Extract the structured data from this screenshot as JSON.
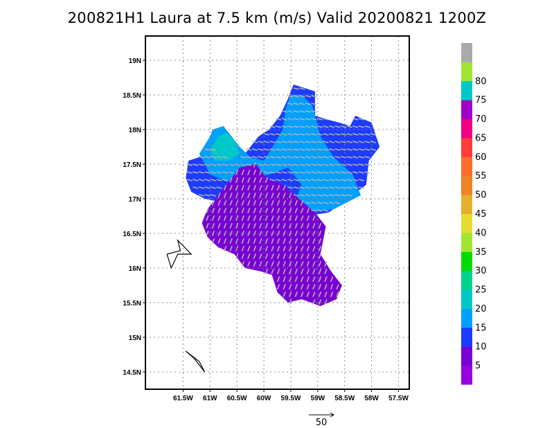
{
  "chart_data": {
    "type": "heatmap",
    "title": "200821H1 Laura at 7.5 km (m/s) Valid 20200821  1200Z",
    "xlim": [
      -62.2,
      -57.3
    ],
    "ylim": [
      14.25,
      19.35
    ],
    "x_ticks": [
      {
        "value": -61.5,
        "label": "61.5W"
      },
      {
        "value": -61.0,
        "label": "61W"
      },
      {
        "value": -60.5,
        "label": "60.5W"
      },
      {
        "value": -60.0,
        "label": "60W"
      },
      {
        "value": -59.5,
        "label": "59.5W"
      },
      {
        "value": -59.0,
        "label": "59W"
      },
      {
        "value": -58.5,
        "label": "58.5W"
      },
      {
        "value": -58.0,
        "label": "58W"
      },
      {
        "value": -57.5,
        "label": "57.5W"
      }
    ],
    "y_ticks": [
      {
        "value": 19.0,
        "label": "19N"
      },
      {
        "value": 18.5,
        "label": "18.5N"
      },
      {
        "value": 18.0,
        "label": "18N"
      },
      {
        "value": 17.5,
        "label": "17.5N"
      },
      {
        "value": 17.0,
        "label": "17N"
      },
      {
        "value": 16.5,
        "label": "16.5N"
      },
      {
        "value": 16.0,
        "label": "16N"
      },
      {
        "value": 15.5,
        "label": "15.5N"
      },
      {
        "value": 15.0,
        "label": "15N"
      },
      {
        "value": 14.5,
        "label": "14.5N"
      }
    ],
    "grid": true,
    "colorbar": {
      "bins": [
        {
          "lo": 0,
          "hi": 5,
          "color": "#9a00dc"
        },
        {
          "lo": 5,
          "hi": 10,
          "color": "#7800d2"
        },
        {
          "lo": 10,
          "hi": 15,
          "color": "#1e3cff"
        },
        {
          "lo": 15,
          "hi": 20,
          "color": "#00a0ff"
        },
        {
          "lo": 20,
          "hi": 25,
          "color": "#00c8c8"
        },
        {
          "lo": 25,
          "hi": 30,
          "color": "#00d28c"
        },
        {
          "lo": 30,
          "hi": 35,
          "color": "#00dc00"
        },
        {
          "lo": 35,
          "hi": 40,
          "color": "#a0e632"
        },
        {
          "lo": 40,
          "hi": 45,
          "color": "#e6dc32"
        },
        {
          "lo": 45,
          "hi": 50,
          "color": "#e6af2d"
        },
        {
          "lo": 50,
          "hi": 55,
          "color": "#f08228"
        },
        {
          "lo": 55,
          "hi": 60,
          "color": "#fa6e2a"
        },
        {
          "lo": 60,
          "hi": 65,
          "color": "#ff3c3c"
        },
        {
          "lo": 65,
          "hi": 70,
          "color": "#f00082"
        },
        {
          "lo": 70,
          "hi": 75,
          "color": "#a000c8"
        },
        {
          "lo": 75,
          "hi": 80,
          "color": "#00c8c8"
        },
        {
          "lo": 80,
          "hi": 85,
          "color": "#a0e632"
        },
        {
          "lo": 85,
          "hi": 90,
          "color": "#aaaaaa"
        }
      ],
      "labels": [
        "5",
        "10",
        "15",
        "20",
        "25",
        "30",
        "35",
        "40",
        "45",
        "50",
        "55",
        "60",
        "65",
        "70",
        "75",
        "80"
      ]
    },
    "wind_regions": [
      {
        "level": "10",
        "color": "#1e3cff",
        "polygon": [
          [
            -61.4,
            17.55
          ],
          [
            -61.2,
            17.6
          ],
          [
            -61.0,
            17.75
          ],
          [
            -60.8,
            17.7
          ],
          [
            -60.6,
            17.55
          ],
          [
            -60.4,
            17.6
          ],
          [
            -60.25,
            17.75
          ],
          [
            -60.1,
            17.9
          ],
          [
            -59.9,
            18.0
          ],
          [
            -59.7,
            18.2
          ],
          [
            -59.55,
            18.45
          ],
          [
            -59.45,
            18.65
          ],
          [
            -59.25,
            18.6
          ],
          [
            -59.05,
            18.55
          ],
          [
            -59.05,
            18.2
          ],
          [
            -58.85,
            18.15
          ],
          [
            -58.6,
            18.1
          ],
          [
            -58.4,
            18.05
          ],
          [
            -58.3,
            18.2
          ],
          [
            -58.0,
            18.1
          ],
          [
            -57.85,
            17.75
          ],
          [
            -58.05,
            17.55
          ],
          [
            -58.1,
            17.2
          ],
          [
            -58.45,
            17.0
          ],
          [
            -58.8,
            16.8
          ],
          [
            -59.25,
            16.75
          ],
          [
            -59.7,
            16.85
          ],
          [
            -60.3,
            16.9
          ],
          [
            -60.8,
            16.95
          ],
          [
            -61.1,
            17.0
          ],
          [
            -61.35,
            17.1
          ],
          [
            -61.45,
            17.3
          ]
        ]
      },
      {
        "level": "15",
        "color": "#00a0ff",
        "polygon": [
          [
            -61.2,
            17.65
          ],
          [
            -61.0,
            17.9
          ],
          [
            -60.95,
            18.0
          ],
          [
            -60.75,
            18.05
          ],
          [
            -60.6,
            17.9
          ],
          [
            -60.45,
            17.75
          ],
          [
            -60.25,
            17.6
          ],
          [
            -60.0,
            17.55
          ],
          [
            -59.8,
            17.8
          ],
          [
            -59.65,
            18.0
          ],
          [
            -59.6,
            18.3
          ],
          [
            -59.5,
            18.5
          ],
          [
            -59.3,
            18.5
          ],
          [
            -59.1,
            18.35
          ],
          [
            -58.95,
            17.9
          ],
          [
            -58.7,
            17.6
          ],
          [
            -58.35,
            17.35
          ],
          [
            -58.2,
            17.05
          ],
          [
            -58.7,
            16.85
          ],
          [
            -59.2,
            16.8
          ],
          [
            -59.45,
            16.9
          ],
          [
            -59.3,
            17.2
          ],
          [
            -59.55,
            17.45
          ],
          [
            -59.9,
            17.35
          ],
          [
            -60.3,
            17.3
          ],
          [
            -60.7,
            17.25
          ],
          [
            -61.0,
            17.35
          ]
        ]
      },
      {
        "level": "20",
        "color": "#00c8c8",
        "polygon": [
          [
            -61.0,
            17.7
          ],
          [
            -60.85,
            17.9
          ],
          [
            -60.7,
            17.95
          ],
          [
            -60.55,
            17.85
          ],
          [
            -60.45,
            17.65
          ],
          [
            -60.65,
            17.55
          ],
          [
            -60.9,
            17.55
          ]
        ]
      },
      {
        "level": "5",
        "color": "#7800d2",
        "polygon": [
          [
            -61.05,
            16.85
          ],
          [
            -60.75,
            17.15
          ],
          [
            -60.45,
            17.45
          ],
          [
            -60.15,
            17.5
          ],
          [
            -59.95,
            17.3
          ],
          [
            -59.65,
            17.2
          ],
          [
            -59.35,
            17.0
          ],
          [
            -59.05,
            16.8
          ],
          [
            -58.85,
            16.6
          ],
          [
            -58.95,
            16.2
          ],
          [
            -58.75,
            15.95
          ],
          [
            -58.55,
            15.75
          ],
          [
            -58.65,
            15.55
          ],
          [
            -58.95,
            15.45
          ],
          [
            -59.3,
            15.55
          ],
          [
            -59.55,
            15.5
          ],
          [
            -59.75,
            15.65
          ],
          [
            -59.85,
            15.9
          ],
          [
            -60.05,
            15.95
          ],
          [
            -60.35,
            16.0
          ],
          [
            -60.55,
            16.2
          ],
          [
            -60.85,
            16.3
          ],
          [
            -61.05,
            16.45
          ],
          [
            -61.15,
            16.65
          ]
        ]
      }
    ],
    "islands": [
      {
        "name": "guadeloupe",
        "points": [
          [
            -61.8,
            16.2
          ],
          [
            -61.55,
            16.25
          ],
          [
            -61.6,
            16.4
          ],
          [
            -61.35,
            16.2
          ],
          [
            -61.6,
            16.2
          ],
          [
            -61.72,
            16.0
          ],
          [
            -61.8,
            16.2
          ]
        ]
      },
      {
        "name": "dominica",
        "points": [
          [
            -61.45,
            14.8
          ],
          [
            -61.2,
            14.65
          ],
          [
            -61.1,
            14.5
          ],
          [
            -61.3,
            14.7
          ],
          [
            -61.45,
            14.8
          ]
        ]
      }
    ],
    "reference_vector": {
      "label": "50"
    }
  }
}
